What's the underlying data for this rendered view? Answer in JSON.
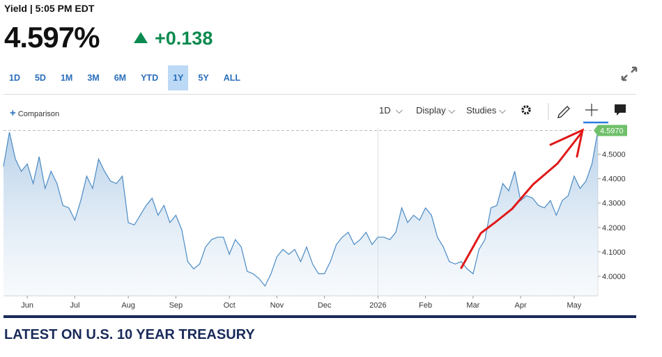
{
  "header": {
    "status": "Yield | 5:05 PM EDT",
    "price": "4.597%",
    "change": "+0.138"
  },
  "ranges": [
    "1D",
    "5D",
    "1M",
    "3M",
    "6M",
    "YTD",
    "1Y",
    "5Y",
    "ALL"
  ],
  "active_range": "1Y",
  "toolbar": {
    "comparison": "Comparison",
    "interval": "1D",
    "display": "Display",
    "studies": "Studies"
  },
  "section_title": "LATEST ON U.S. 10 YEAR TREASURY",
  "chart_data": {
    "type": "area",
    "color": "#4a8ac4",
    "last_value_label": "4.5970",
    "categories": [
      null,
      null,
      null,
      null,
      "Jun",
      null,
      null,
      null,
      null,
      null,
      null,
      null,
      "Jul",
      null,
      null,
      null,
      null,
      null,
      null,
      null,
      null,
      "Aug",
      null,
      null,
      null,
      null,
      null,
      null,
      null,
      "Sep",
      null,
      null,
      null,
      null,
      null,
      null,
      null,
      null,
      "Oct",
      null,
      null,
      null,
      null,
      null,
      null,
      null,
      "Nov",
      null,
      null,
      null,
      null,
      null,
      null,
      null,
      "Dec",
      null,
      null,
      null,
      null,
      null,
      null,
      null,
      null,
      "2026",
      null,
      null,
      null,
      null,
      null,
      null,
      null,
      "Feb",
      null,
      null,
      null,
      null,
      null,
      null,
      null,
      "Mar",
      null,
      null,
      null,
      null,
      null,
      null,
      null,
      "Apr",
      null,
      null,
      null,
      null,
      null,
      null,
      null,
      null,
      "May",
      null,
      null,
      null,
      null
    ],
    "values": [
      4.45,
      4.59,
      4.48,
      4.43,
      4.46,
      4.38,
      4.49,
      4.36,
      4.43,
      4.38,
      4.29,
      4.28,
      4.23,
      4.31,
      4.41,
      4.36,
      4.48,
      4.43,
      4.39,
      4.38,
      4.41,
      4.22,
      4.21,
      4.25,
      4.29,
      4.32,
      4.25,
      4.29,
      4.22,
      4.25,
      4.19,
      4.06,
      4.03,
      4.05,
      4.12,
      4.15,
      4.16,
      4.16,
      4.09,
      4.15,
      4.12,
      4.02,
      4.01,
      3.99,
      3.96,
      4.01,
      4.08,
      4.11,
      4.09,
      4.11,
      4.06,
      4.12,
      4.05,
      4.01,
      4.01,
      4.06,
      4.13,
      4.16,
      4.18,
      4.13,
      4.15,
      4.18,
      4.13,
      4.16,
      4.16,
      4.15,
      4.18,
      4.28,
      4.22,
      4.25,
      4.23,
      4.28,
      4.25,
      4.16,
      4.12,
      4.06,
      4.05,
      4.06,
      4.03,
      4.01,
      4.11,
      4.15,
      4.28,
      4.29,
      4.38,
      4.35,
      4.43,
      4.31,
      4.33,
      4.32,
      4.29,
      4.28,
      4.31,
      4.25,
      4.31,
      4.33,
      4.41,
      4.36,
      4.39,
      4.46,
      4.597
    ],
    "ylim": [
      3.92,
      4.61
    ],
    "yticks": [
      {
        "value": 4.0,
        "label": "4.0000"
      },
      {
        "value": 4.1,
        "label": "4.1000"
      },
      {
        "value": 4.2,
        "label": "4.2000"
      },
      {
        "value": 4.3,
        "label": "4.3000"
      },
      {
        "value": 4.4,
        "label": "4.4000"
      },
      {
        "value": 4.5,
        "label": "4.5000"
      }
    ]
  }
}
